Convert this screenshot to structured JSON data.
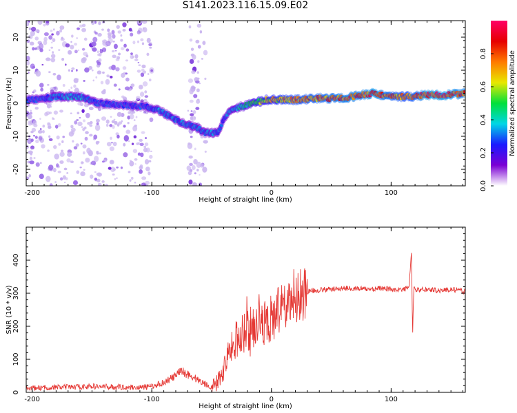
{
  "title": "S141.2023.116.15.09.E02",
  "colors": {
    "snr_line": "#e53935",
    "scatter_weak": "#cbb7f0",
    "scatter_mid": "#9a6be8",
    "scatter_strong": "#6a1fd6"
  },
  "colorbar": {
    "label": "Normalized spectral amplitude",
    "ticks": [
      "0.0",
      "0.2",
      "0.4",
      "0.6",
      "0.8"
    ],
    "tick_values": [
      0.0,
      0.2,
      0.4,
      0.6,
      0.8
    ],
    "range": [
      0,
      1
    ],
    "colormap": [
      "#ffffff",
      "#7b00d4",
      "#1a1aff",
      "#00d6e6",
      "#00e03a",
      "#e8e800",
      "#ff7a00",
      "#e60000",
      "#ff0066"
    ]
  },
  "chart_data": [
    {
      "type": "heatmap",
      "title": "",
      "xlabel": "Height of straight line (km)",
      "ylabel": "Frequency (Hz)",
      "xlim": [
        -205,
        162
      ],
      "ylim": [
        -25,
        25
      ],
      "x_ticks": [
        -200,
        -100,
        0,
        100
      ],
      "x_tick_labels": [
        "-200",
        "-100",
        "0",
        "100"
      ],
      "y_ticks": [
        -20,
        -10,
        0,
        10,
        20
      ],
      "y_tick_labels": [
        "-20",
        "-10",
        "0",
        "10",
        "20"
      ],
      "ridge": {
        "description_points_x": [
          -200,
          -180,
          -160,
          -145,
          -105,
          -95,
          -85,
          -75,
          -65,
          -55,
          -45,
          -40,
          -35,
          -25,
          -15,
          -5,
          0,
          10,
          20,
          40,
          60,
          75,
          85,
          100,
          110,
          115,
          130,
          145,
          162
        ],
        "frequency_hz": [
          1,
          2,
          2,
          0,
          -1,
          -2,
          -4,
          -6,
          -7,
          -9,
          -9,
          -5,
          -2,
          -1,
          0,
          1,
          1,
          1,
          1,
          1.5,
          1.5,
          2.5,
          3,
          2,
          2,
          2,
          2.5,
          2.5,
          3
        ],
        "amplitude": [
          0.3,
          0.35,
          0.4,
          0.3,
          0.3,
          0.35,
          0.35,
          0.35,
          0.35,
          0.35,
          0.35,
          0.3,
          0.35,
          0.45,
          0.55,
          0.65,
          0.7,
          0.75,
          0.8,
          0.85,
          0.9,
          0.9,
          0.95,
          0.85,
          0.8,
          0.8,
          0.95,
          0.95,
          0.9
        ]
      }
    },
    {
      "type": "line",
      "title": "",
      "xlabel": "Height of straight line (km)",
      "ylabel": "SNR (10 * v/v)",
      "xlim": [
        -205,
        162
      ],
      "ylim": [
        0,
        500
      ],
      "x_ticks": [
        -200,
        -100,
        0,
        100
      ],
      "x_tick_labels": [
        "-200",
        "-100",
        "0",
        "100"
      ],
      "y_ticks": [
        0,
        100,
        200,
        300,
        400
      ],
      "y_tick_labels": [
        "0",
        "100",
        "200",
        "300",
        "400"
      ],
      "series": [
        {
          "x": [
            -205,
            -190,
            -170,
            -150,
            -130,
            -110,
            -100,
            -90,
            -80,
            -75,
            -70,
            -60,
            -50,
            -45,
            -40,
            -35,
            -30,
            -25,
            -20,
            -15,
            -10,
            -5,
            0,
            5,
            10,
            20,
            30,
            40,
            50,
            60,
            70,
            80,
            90,
            100,
            110,
            115,
            117,
            118,
            119,
            120,
            125,
            130,
            140,
            150,
            162
          ],
          "y": [
            12,
            14,
            16,
            18,
            16,
            15,
            18,
            30,
            50,
            65,
            55,
            35,
            15,
            30,
            70,
            120,
            160,
            180,
            190,
            200,
            210,
            215,
            220,
            240,
            260,
            290,
            305,
            310,
            312,
            315,
            315,
            312,
            315,
            312,
            310,
            320,
            420,
            175,
            320,
            310,
            310,
            312,
            308,
            312,
            305
          ]
        }
      ]
    }
  ]
}
